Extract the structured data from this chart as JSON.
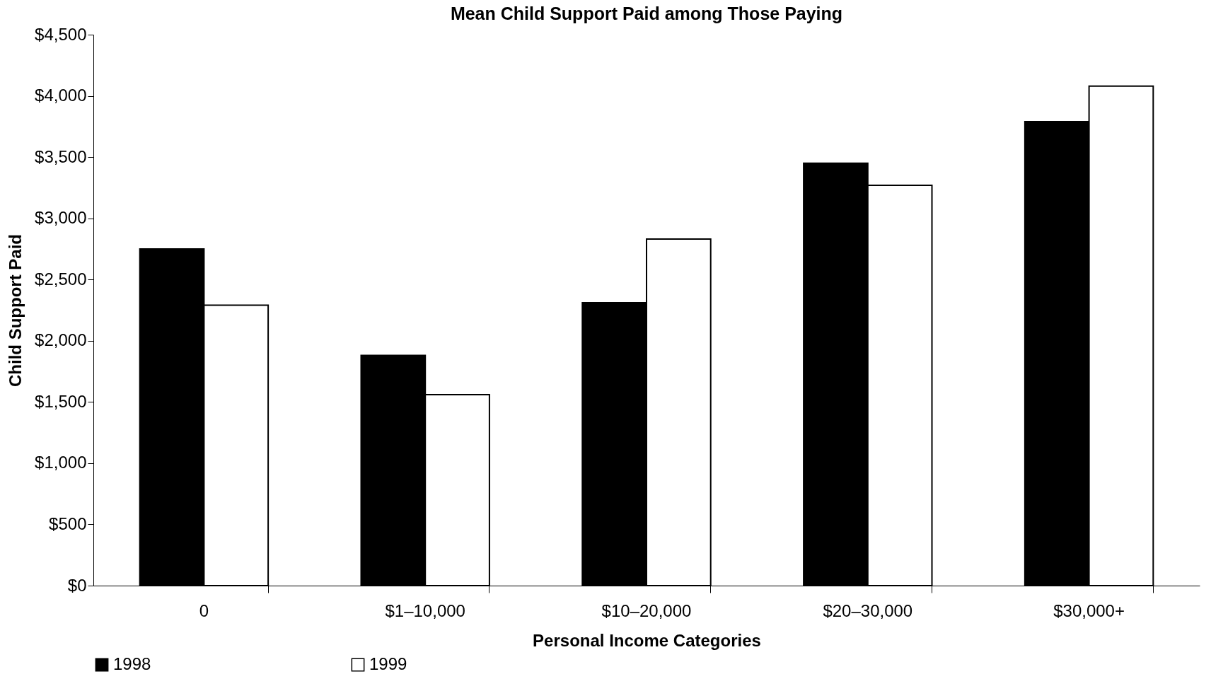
{
  "chart_data": {
    "type": "bar",
    "title": "Mean Child Support Paid among Those Paying",
    "xlabel": "Personal Income Categories",
    "ylabel": "Child Support Paid",
    "categories": [
      "0",
      "$1–10,000",
      "$10–20,000",
      "$20–30,000",
      "$30,000+"
    ],
    "series": [
      {
        "name": "1998",
        "color": "#000000",
        "values": [
          2750,
          1880,
          2310,
          3450,
          3790
        ]
      },
      {
        "name": "1999",
        "color": "#ffffff",
        "values": [
          2290,
          1560,
          2830,
          3270,
          4080
        ]
      }
    ],
    "ylim": [
      0,
      4500
    ],
    "yticks": [
      {
        "value": 0,
        "label": "$0"
      },
      {
        "value": 500,
        "label": "$500"
      },
      {
        "value": 1000,
        "label": "$1,000"
      },
      {
        "value": 1500,
        "label": "$1,500"
      },
      {
        "value": 2000,
        "label": "$2,000"
      },
      {
        "value": 2500,
        "label": "$2,500"
      },
      {
        "value": 3000,
        "label": "$3,000"
      },
      {
        "value": 3500,
        "label": "$3,500"
      },
      {
        "value": 4000,
        "label": "$4,000"
      },
      {
        "value": 4500,
        "label": "$4,500"
      }
    ],
    "grid": false,
    "legend": "bottom"
  }
}
